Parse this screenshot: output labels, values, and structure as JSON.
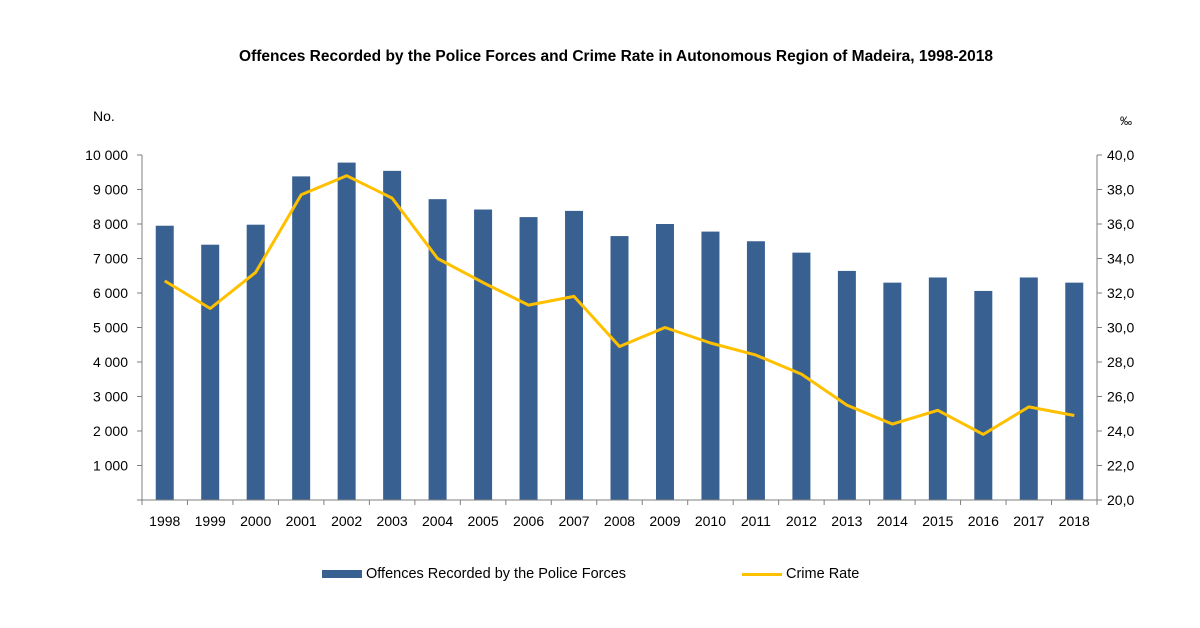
{
  "chart_data": {
    "type": "bar",
    "title": "Offences Recorded by the Police Forces and Crime Rate in Autonomous Region of Madeira, 1998-2018",
    "ylabel_left": "No.",
    "ylabel_right": "‰",
    "categories": [
      "1998",
      "1999",
      "2000",
      "2001",
      "2002",
      "2003",
      "2004",
      "2005",
      "2006",
      "2007",
      "2008",
      "2009",
      "2010",
      "2011",
      "2012",
      "2013",
      "2014",
      "2015",
      "2016",
      "2017",
      "2018"
    ],
    "y_left_lim": [
      0,
      10000
    ],
    "y_left_ticks": [
      "1 000",
      "2 000",
      "3 000",
      "4 000",
      "5 000",
      "6 000",
      "7 000",
      "8 000",
      "9 000",
      "10 000"
    ],
    "y_right_lim": [
      20.0,
      40.0
    ],
    "y_right_ticks": [
      "20,0",
      "22,0",
      "24,0",
      "26,0",
      "28,0",
      "30,0",
      "32,0",
      "34,0",
      "36,0",
      "38,0",
      "40,0"
    ],
    "series": [
      {
        "name": "Offences Recorded by the Police Forces",
        "type": "bar",
        "axis": "left",
        "color": "#386192",
        "values": [
          7950,
          7400,
          7980,
          9380,
          9780,
          9540,
          8720,
          8420,
          8200,
          8380,
          7650,
          8000,
          7780,
          7500,
          7170,
          6640,
          6300,
          6450,
          6060,
          6450,
          6300
        ]
      },
      {
        "name": "Crime Rate",
        "type": "line",
        "axis": "right",
        "color": "#FFC000",
        "values": [
          32.7,
          31.1,
          33.2,
          37.7,
          38.8,
          37.5,
          34.0,
          32.6,
          31.3,
          31.8,
          28.9,
          30.0,
          29.1,
          28.4,
          27.3,
          25.5,
          24.4,
          25.2,
          23.8,
          25.4,
          24.9
        ]
      }
    ],
    "grid": false,
    "legend_position": "bottom"
  }
}
